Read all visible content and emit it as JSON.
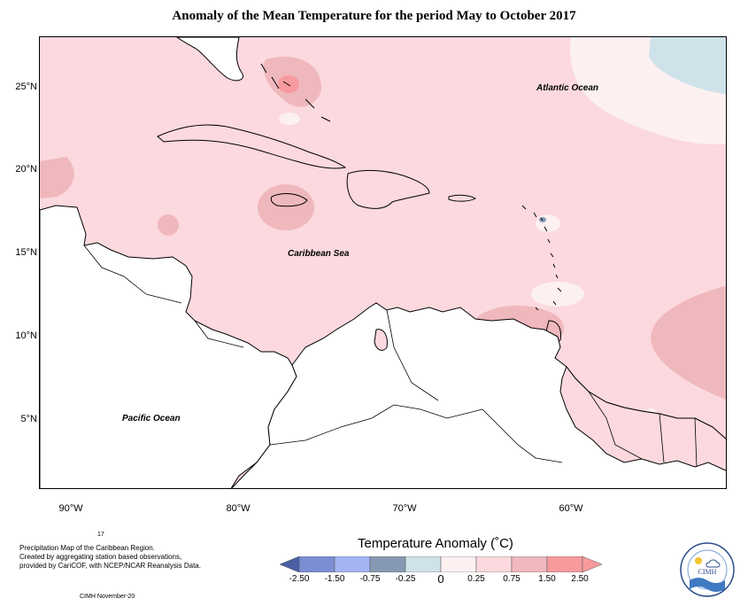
{
  "title": "Anomaly of the Mean Temperature for the period May to October 2017",
  "map": {
    "latitude_labels": [
      "25°N",
      "20°N",
      "15°N",
      "10°N",
      "5°N"
    ],
    "longitude_labels": [
      "90°W",
      "80°W",
      "70°W",
      "60°W"
    ],
    "ocean_labels": {
      "atlantic": "Atlantic Ocean",
      "caribbean": "Caribbean Sea",
      "pacific": "Pacific Ocean"
    }
  },
  "footnote": {
    "number": "17",
    "line1": "Precipitation Map of the Caribbean Region.",
    "line2": "Created by aggregating station based observations,",
    "line3": "provided by CariCOF, with NCEP/NCAR Reanalysis Data.",
    "credit": "CIMH November-20"
  },
  "legend": {
    "title": "Temperature Anomaly (˚C)",
    "ticks": [
      "-2.50",
      "-1.50",
      "-0.75",
      "-0.25",
      "0",
      "0.25",
      "0.75",
      "1.50",
      "2.50"
    ],
    "colors": [
      "#4b5fa5",
      "#7b8ed4",
      "#a4b4f2",
      "#8699b2",
      "#cfe2ea",
      "#fdf0f1",
      "#fbd9de",
      "#efb8bd",
      "#f79a9e"
    ]
  },
  "logo": {
    "text": "CIMH"
  }
}
